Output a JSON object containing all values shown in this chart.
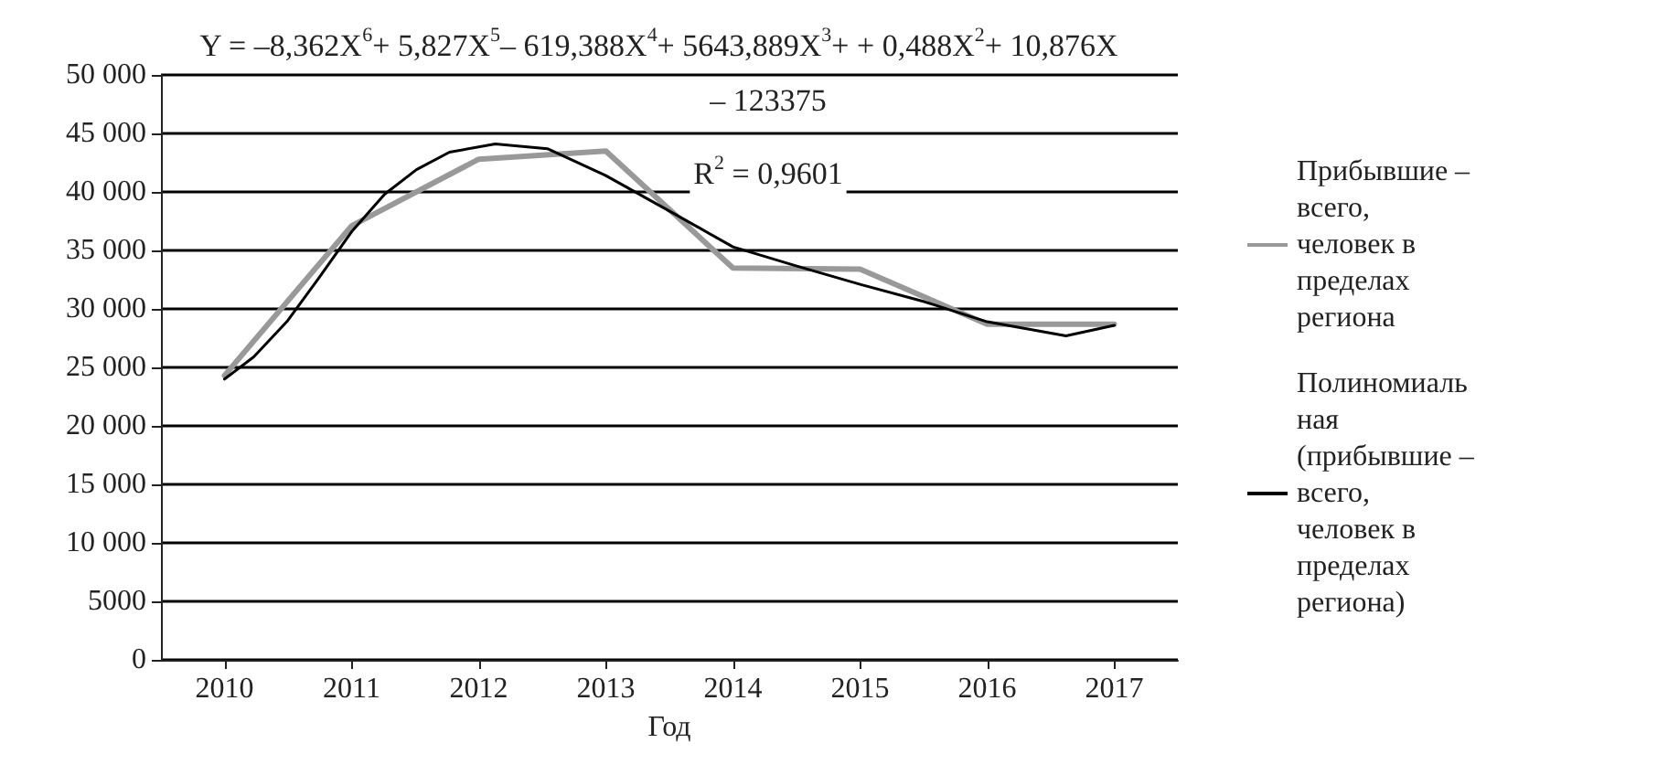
{
  "chart_data": {
    "type": "line",
    "xlabel": "Год",
    "x": [
      2010,
      2011,
      2012,
      2013,
      2014,
      2015,
      2016,
      2017
    ],
    "xlim": [
      2009.5,
      2017.5
    ],
    "xticks": [
      2010,
      2011,
      2012,
      2013,
      2014,
      2015,
      2016,
      2017
    ],
    "ylim": [
      0,
      50000
    ],
    "yticks": [
      0,
      5000,
      {
        "value": 10000,
        "label": "10 000"
      },
      {
        "value": 15000,
        "label": "15 000"
      },
      {
        "value": 20000,
        "label": "20 000"
      },
      {
        "value": 25000,
        "label": "25 000"
      },
      {
        "value": 30000,
        "label": "30 000"
      },
      {
        "value": 35000,
        "label": "35 000"
      },
      {
        "value": 40000,
        "label": "40 000"
      },
      {
        "value": 45000,
        "label": "45 000"
      },
      {
        "value": 50000,
        "label": "50 000"
      }
    ],
    "series": [
      {
        "name": "Прибывшие – всего, человек в пределах региона",
        "color": "#999999",
        "values": [
          24300,
          37100,
          42800,
          43500,
          33500,
          33400,
          28700,
          28700
        ]
      },
      {
        "name": "Полиномиальная (прибывшие – всего, человек в пределах региона)",
        "color": "#000000",
        "x": [
          2010,
          2010.23,
          2010.49,
          2010.74,
          2011,
          2011.26,
          2011.51,
          2011.77,
          2012.13,
          2012.54,
          2013,
          2013.56,
          2014,
          2014.49,
          2015,
          2015.51,
          2016,
          2016.62,
          2017
        ],
        "values": [
          24000,
          25900,
          28900,
          32600,
          36600,
          39800,
          41900,
          43400,
          44100,
          43700,
          41400,
          38000,
          35300,
          33700,
          32100,
          30600,
          28900,
          27700,
          28600
        ]
      }
    ],
    "annotations": [
      "Y = –8,362X$^{6}$+ 5,827X$^{5}$– 619,388X$^{4}$+ 5643,889X$^{3}$+ + 0,488X$^{2}$+ 10,876X – 123375",
      "R$^{2}$ = 0,9601"
    ],
    "grid": "y",
    "legend": "right",
    "marker": "none",
    "line_style": "solid"
  }
}
